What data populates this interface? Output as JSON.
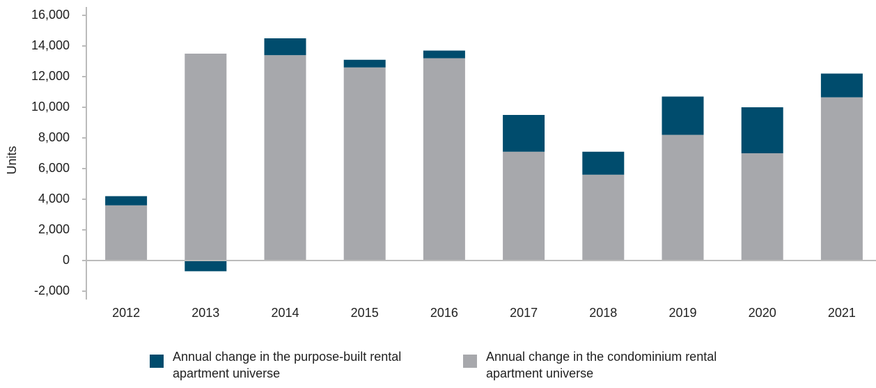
{
  "chart_data": {
    "type": "bar",
    "stacked": true,
    "y_label": "Units",
    "categories": [
      "2012",
      "2013",
      "2014",
      "2015",
      "2016",
      "2017",
      "2018",
      "2019",
      "2020",
      "2021"
    ],
    "series": [
      {
        "name": "Annual change in the purpose-built rental apartment universe",
        "color": "#004c6d",
        "values": [
          600,
          -700,
          1100,
          500,
          500,
          2400,
          1500,
          2500,
          3000,
          1550
        ]
      },
      {
        "name": "Annual change in the condominium rental apartment universe",
        "color": "#a7a8ac",
        "values": [
          3600,
          13500,
          13400,
          12600,
          13200,
          7100,
          5600,
          8200,
          7000,
          10650
        ]
      }
    ],
    "ylim": [
      -2000,
      16000
    ],
    "yticks": [
      {
        "value": -2000,
        "label": "-2,000"
      },
      0,
      {
        "value": 2000,
        "label": "2,000"
      },
      {
        "value": 4000,
        "label": "4,000"
      },
      {
        "value": 6000,
        "label": "6,000"
      },
      {
        "value": 8000,
        "label": "8,000"
      },
      {
        "value": 10000,
        "label": "10,000"
      },
      {
        "value": 12000,
        "label": "12,000"
      },
      {
        "value": 14000,
        "label": "14,000"
      },
      {
        "value": 16000,
        "label": "16,000"
      }
    ],
    "grid": false
  }
}
